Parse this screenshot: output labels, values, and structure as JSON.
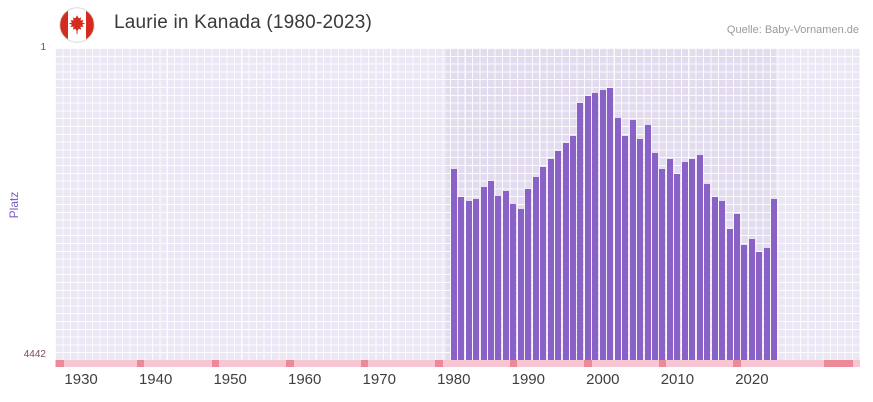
{
  "header": {
    "title": "Laurie in Kanada (1980-2023)",
    "source": "Quelle: Baby-Vornamen.de",
    "flag_icon": "canada-flag"
  },
  "chart_data": {
    "type": "bar",
    "title": "Laurie in Kanada (1980-2023)",
    "xlabel": "",
    "ylabel": "Platz",
    "grid": true,
    "legend": false,
    "bar_color": "#8a61c6",
    "background_color": "#ece7f5",
    "data_region_color": "#e3dcef",
    "y_axis": {
      "top_label": "1",
      "bottom_label": "4442",
      "min": 1,
      "max": 4442,
      "inverted": true
    },
    "x_axis": {
      "domain": [
        1927,
        2035
      ],
      "tick_labels": [
        "1930",
        "1940",
        "1950",
        "1960",
        "1970",
        "1980",
        "1990",
        "2000",
        "2010",
        "2020"
      ]
    },
    "data_region": [
      1979.4,
      2023.7
    ],
    "years": [
      1980,
      1981,
      1982,
      1983,
      1984,
      1985,
      1986,
      1987,
      1988,
      1989,
      1990,
      1991,
      1992,
      1993,
      1994,
      1995,
      1996,
      1997,
      1998,
      1999,
      2000,
      2001,
      2002,
      2003,
      2004,
      2005,
      2006,
      2007,
      2008,
      2009,
      2010,
      2011,
      2012,
      2013,
      2014,
      2015,
      2016,
      2017,
      2018,
      2019,
      2020,
      2021,
      2022,
      2023
    ],
    "ranks": [
      1720,
      2120,
      2180,
      2150,
      1980,
      1890,
      2110,
      2040,
      2220,
      2290,
      2010,
      1840,
      1690,
      1580,
      1460,
      1360,
      1260,
      790,
      690,
      645,
      600,
      575,
      1000,
      1260,
      1030,
      1290,
      1100,
      1500,
      1720,
      1580,
      1790,
      1630,
      1580,
      1530,
      1930,
      2120,
      2180,
      2580,
      2360,
      2800,
      2720,
      2900,
      2850,
      2150
    ],
    "axis_strip": {
      "base_color": "#f6c6d2",
      "mark_color": "#ec8a99",
      "marks": [
        [
          1927.2,
          1
        ],
        [
          1938,
          1
        ],
        [
          1948,
          1
        ],
        [
          1958,
          1
        ],
        [
          1968,
          1
        ],
        [
          1978,
          1
        ],
        [
          1988,
          1
        ],
        [
          1998,
          1
        ],
        [
          2008,
          1
        ],
        [
          2018,
          1
        ],
        [
          2030.2,
          3.8
        ]
      ]
    }
  }
}
